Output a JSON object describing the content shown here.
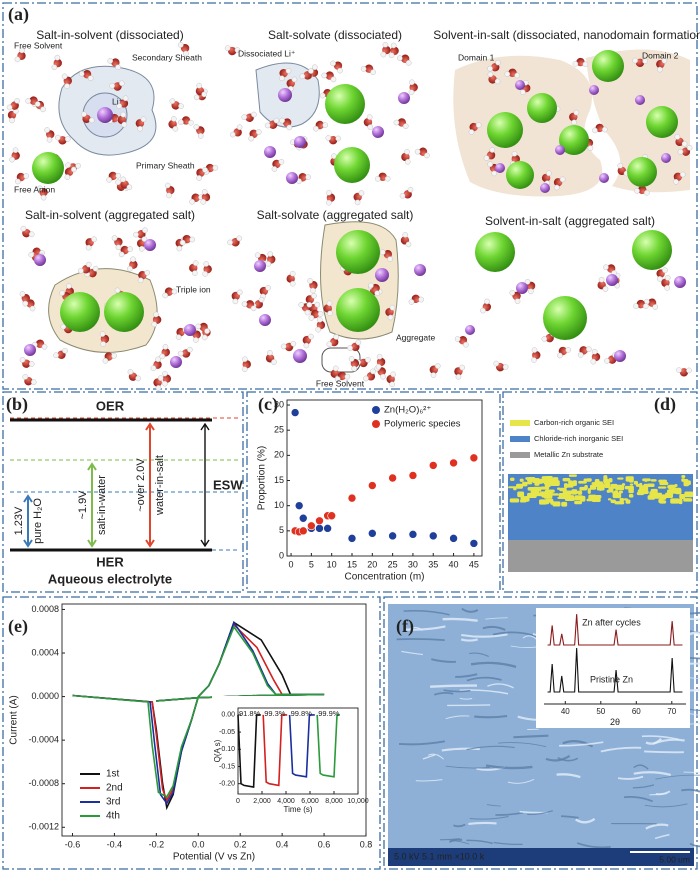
{
  "panel_a": {
    "label": "(a)",
    "scenes": [
      {
        "title": "Salt-in-solvent (dissociated)",
        "labels": [
          "Free Solvent",
          "Secondary Sheath",
          "Li⁺",
          "Primary Sheath",
          "Free Anion"
        ]
      },
      {
        "title": "Salt-solvate (dissociated)",
        "labels": [
          "Dissociated Li⁺"
        ]
      },
      {
        "title": "Solvent-in-salt (dissociated, nanodomain formation)",
        "labels": [
          "Domain 1",
          "Domain 2"
        ]
      },
      {
        "title": "Salt-in-solvent (aggregated salt)",
        "labels": [
          "Triple ion"
        ]
      },
      {
        "title": "Salt-solvate (aggregated salt)",
        "labels": [
          "Aggregate",
          "Free Solvent"
        ]
      },
      {
        "title": "Solvent-in-salt (aggregated salt)",
        "labels": []
      }
    ]
  },
  "panel_b": {
    "label": "(b)",
    "top": "OER",
    "bottom": "HER",
    "windows": [
      {
        "value": "1.23V",
        "name": "pure H₂O",
        "color": "#3a7ab8"
      },
      {
        "value": "~1.9V",
        "name": "salt-in-water",
        "color": "#7dbb4a"
      },
      {
        "value": "~over 2.0V",
        "name": "water-in-salt",
        "color": "#e0462c"
      }
    ],
    "esw": "ESW",
    "caption": "Aqueous electrolyte"
  },
  "panel_c": {
    "label": "(c)"
  },
  "panel_d": {
    "label": "(d)",
    "legend": [
      {
        "text": "Carbon-rich organic SEI",
        "color": "#e6e64a"
      },
      {
        "text": "Chloride-rich inorganic SEI",
        "color": "#4f83c8"
      },
      {
        "text": "Metallic Zn substrate",
        "color": "#9a9a9a"
      }
    ]
  },
  "panel_e": {
    "label": "(e)"
  },
  "panel_f": {
    "label": "(f)",
    "scale_info": "5.0 kV 5.1 mm ×10.0 k",
    "scale_bar": "5.00 um"
  },
  "chart_data": [
    {
      "type": "scatter",
      "xlabel": "Concentration (m)",
      "ylabel": "Proportion (%)",
      "xlim": [
        -1,
        47
      ],
      "xticks": [
        0,
        5,
        10,
        15,
        20,
        25,
        30,
        35,
        40,
        45
      ],
      "ylim": [
        0,
        31
      ],
      "yticks": [
        0,
        5,
        10,
        15,
        20,
        25,
        30
      ],
      "legend": "upper right",
      "series": [
        {
          "name": "Zn(H₂O)₆²⁺",
          "color": "#1f3f9a",
          "x": [
            1,
            2,
            3,
            5,
            7,
            9,
            15,
            20,
            25,
            30,
            35,
            40,
            45
          ],
          "values": [
            28.5,
            10,
            7.5,
            5.5,
            5.5,
            5.5,
            3.5,
            4.5,
            4,
            4.3,
            4,
            3.5,
            2.5
          ]
        },
        {
          "name": "Polymeric species",
          "color": "#e03020",
          "x": [
            1,
            2,
            3,
            5,
            7,
            9,
            10,
            15,
            20,
            25,
            30,
            35,
            40,
            45
          ],
          "values": [
            5,
            4.8,
            5,
            6,
            7,
            8,
            8,
            11.5,
            14,
            15.5,
            16,
            18,
            18.5,
            19.5
          ]
        }
      ]
    },
    {
      "type": "line",
      "xlabel": "Potential (V vs Zn)",
      "ylabel": "Current (A)",
      "xlim": [
        -0.65,
        0.8
      ],
      "ylim": [
        -0.00128,
        0.00085
      ],
      "xticks": [
        -0.6,
        -0.4,
        -0.2,
        {
          "value": 0,
          "label": "0.0"
        },
        0.2,
        0.4,
        0.6,
        0.8
      ],
      "yticks": [
        {
          "value": -0.0012,
          "label": "-0.0012"
        },
        {
          "value": -0.0008,
          "label": "-0.0008"
        },
        {
          "value": -0.0004,
          "label": "-0.0004"
        },
        {
          "value": 0,
          "label": "0.0000"
        },
        {
          "value": 0.0004,
          "label": "0.0004"
        },
        {
          "value": 0.0008,
          "label": "0.0008"
        }
      ],
      "legend": "lower left",
      "series": [
        {
          "name": "1st",
          "color": "#111111",
          "x": [
            -0.6,
            -0.22,
            -0.2,
            -0.17,
            -0.15,
            -0.12,
            -0.08,
            -0.03,
            0,
            0.05,
            0.1,
            0.17,
            0.3,
            0.4,
            0.44,
            0.6,
            0.3,
            0.0,
            -0.2
          ],
          "values": [
            1e-05,
            -5e-05,
            -0.0003,
            -0.0008,
            -0.00102,
            -0.0009,
            -0.0005,
            -0.0002,
            0,
            0.0001,
            0.0003,
            0.00068,
            0.00052,
            0.0002,
            2e-05,
            2e-05,
            1e-05,
            -1e-05,
            -4e-05
          ]
        },
        {
          "name": "2nd",
          "color": "#d42020",
          "x": [
            -0.6,
            -0.22,
            -0.2,
            -0.17,
            -0.15,
            -0.12,
            -0.08,
            -0.03,
            0,
            0.05,
            0.1,
            0.17,
            0.28,
            0.36,
            0.4,
            0.6,
            0.3,
            0.0,
            -0.2
          ],
          "values": [
            1e-05,
            -5e-05,
            -0.00035,
            -0.00085,
            -0.00095,
            -0.00085,
            -0.00048,
            -0.0002,
            0,
            0.0001,
            0.0003,
            0.00066,
            0.00045,
            0.00015,
            2e-05,
            2e-05,
            1e-05,
            -1e-05,
            -4e-05
          ]
        },
        {
          "name": "3rd",
          "color": "#1a2fa0",
          "x": [
            -0.6,
            -0.23,
            -0.21,
            -0.18,
            -0.15,
            -0.12,
            -0.08,
            -0.03,
            0,
            0.05,
            0.1,
            0.17,
            0.26,
            0.33,
            0.37,
            0.6,
            0.3,
            0.0,
            -0.2
          ],
          "values": [
            1e-05,
            -5e-05,
            -0.0004,
            -0.0009,
            -0.00098,
            -0.00088,
            -0.0005,
            -0.0002,
            0,
            0.0001,
            0.0003,
            0.00068,
            0.00042,
            0.00012,
            2e-05,
            2e-05,
            1e-05,
            -1e-05,
            -4e-05
          ]
        },
        {
          "name": "4th",
          "color": "#2a9a3a",
          "x": [
            -0.6,
            -0.24,
            -0.22,
            -0.19,
            -0.15,
            -0.12,
            -0.08,
            -0.03,
            0,
            0.05,
            0.1,
            0.17,
            0.26,
            0.33,
            0.37,
            0.6,
            0.3,
            0.0,
            -0.2
          ],
          "values": [
            1e-05,
            -5e-05,
            -0.00045,
            -0.00088,
            -0.00092,
            -0.00082,
            -0.00046,
            -0.0002,
            0,
            0.0001,
            0.0003,
            0.00064,
            0.0004,
            0.0001,
            2e-05,
            2e-05,
            1e-05,
            -1e-05,
            -4e-05
          ]
        }
      ]
    },
    {
      "type": "line",
      "xlabel": "Time (s)",
      "ylabel": "Q(A s)",
      "xlim": [
        0,
        10000
      ],
      "ylim": [
        -0.23,
        0.02
      ],
      "xticks": [
        0,
        {
          "value": 2000,
          "label": "2,000"
        },
        {
          "value": 4000,
          "label": "4,000"
        },
        {
          "value": 6000,
          "label": "6,000"
        },
        {
          "value": 8000,
          "label": "8,000"
        },
        {
          "value": 10000,
          "label": "10,000"
        }
      ],
      "yticks": [
        {
          "value": -0.2,
          "label": "-0.20"
        },
        {
          "value": -0.15,
          "label": "-0.15"
        },
        {
          "value": -0.1,
          "label": "-0.10"
        },
        {
          "value": -0.05,
          "label": "-0.05"
        },
        {
          "value": 0,
          "label": "0.00"
        }
      ],
      "annotations": [
        "91.8%",
        "99.3%",
        "99.8%",
        "99.9%"
      ],
      "series": [
        {
          "color": "#111111",
          "x": [
            0,
            250,
            500,
            1300,
            1550,
            1900
          ],
          "values": [
            0,
            -0.2,
            -0.205,
            -0.21,
            0,
            0
          ]
        },
        {
          "color": "#d42020",
          "x": [
            2100,
            2350,
            2600,
            3400,
            3650,
            4100
          ],
          "values": [
            0,
            -0.195,
            -0.2,
            -0.205,
            0,
            0
          ]
        },
        {
          "color": "#1a2fa0",
          "x": [
            4300,
            4550,
            4800,
            5700,
            5950,
            6400
          ],
          "values": [
            0,
            -0.17,
            -0.175,
            -0.18,
            0,
            0
          ]
        },
        {
          "color": "#2a9a3a",
          "x": [
            6600,
            6850,
            7100,
            8000,
            8250,
            8500
          ],
          "values": [
            0,
            -0.17,
            -0.175,
            -0.18,
            0,
            0
          ]
        }
      ]
    },
    {
      "type": "xrd",
      "xlabel": "2θ",
      "xlim": [
        34,
        74
      ],
      "xticks": [
        40,
        50,
        60,
        70
      ],
      "series": [
        {
          "name": "Zn after cycles",
          "color": "#8b1a1a"
        },
        {
          "name": "Pristine Zn",
          "color": "#111111"
        }
      ]
    }
  ]
}
